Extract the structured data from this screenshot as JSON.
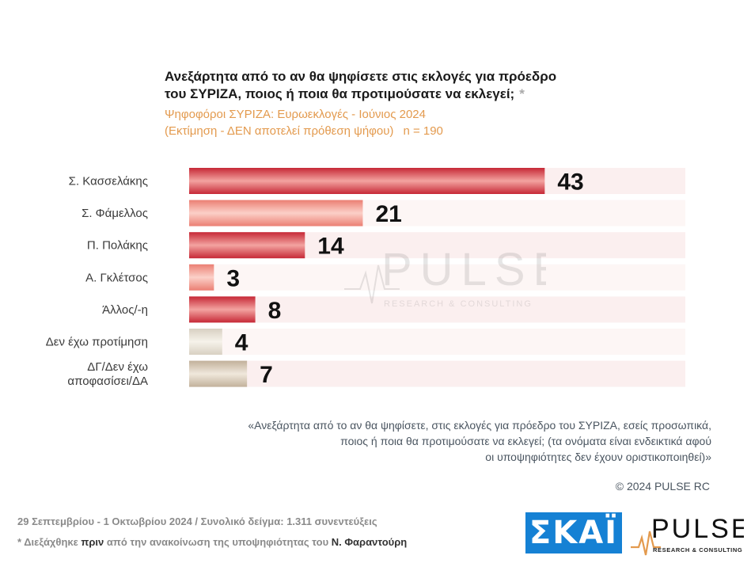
{
  "title": {
    "line1": "Ανεξάρτητα από το αν θα ψηφίσετε στις εκλογές για πρόεδρο",
    "line2": "του ΣΥΡΙΖΑ, ποιος ή ποια θα προτιμούσατε να εκλεγεί;",
    "asterisk": "*"
  },
  "subtitle": {
    "line1": "Ψηφοφόροι ΣΥΡΙΖΑ: Ευρωεκλογές - Ιούνιος 2024",
    "line2": "(Εκτίμηση - ΔΕΝ αποτελεί πρόθεση ψήφου)",
    "n": "n = 190"
  },
  "chart_data": {
    "type": "bar",
    "orientation": "horizontal",
    "categories": [
      "Σ. Κασσελάκης",
      "Σ. Φάμελλος",
      "Π. Πολάκης",
      "Α. Γκλέτσος",
      "Άλλος/-η",
      "Δεν έχω προτίμηση",
      "ΔΓ/Δεν έχω αποφασίσει/ΔΑ"
    ],
    "category_lines": [
      [
        "Σ. Κασσελάκης"
      ],
      [
        "Σ. Φάμελλος"
      ],
      [
        "Π. Πολάκης"
      ],
      [
        "Α. Γκλέτσος"
      ],
      [
        "Άλλος/-η"
      ],
      [
        "Δεν έχω προτίμηση"
      ],
      [
        "ΔΓ/Δεν έχω",
        "αποφασίσει/ΔΑ"
      ]
    ],
    "values": [
      43,
      21,
      14,
      3,
      8,
      4,
      7
    ],
    "bar_colors": [
      "#d0303c",
      "#ec8a7e",
      "#d0303c",
      "#ec8a7e",
      "#d0303c",
      "#ddd6c9",
      "#c7b7a3"
    ],
    "xlim": [
      0,
      60
    ]
  },
  "watermark": {
    "brand": "PULSE",
    "tagline": "RESEARCH & CONSULTING"
  },
  "question_note": {
    "line1": "«Ανεξάρτητα από το αν θα ψηφίσετε, στις εκλογές για πρόεδρο του ΣΥΡΙΖΑ, εσείς προσωπικά,",
    "line2": "ποιος ή ποια θα προτιμούσατε να εκλεγεί; (τα ονόματα είναι ενδεικτικά αφού",
    "line3": "οι υποψηφιότητες δεν έχουν οριστικοποιηθεί)»"
  },
  "copyright": "© 2024 PULSE RC",
  "footer": {
    "date_sample": "29 Σεπτεμβρίου - 1 Οκτωβρίου 2024  /  Συνολικό δείγμα:  1.311 συνεντεύξεις",
    "note_pre": "* Διεξάχθηκε ",
    "note_prin": "πριν",
    "note_mid": " από την ανακοίνωση της υποψηφιότητας του ",
    "note_name": "Ν. Φαραντούρη"
  },
  "logos": {
    "skai": "ΣΚΑΪ",
    "pulse": "PULSE",
    "pulse_tagline": "RESEARCH & CONSULTING"
  }
}
